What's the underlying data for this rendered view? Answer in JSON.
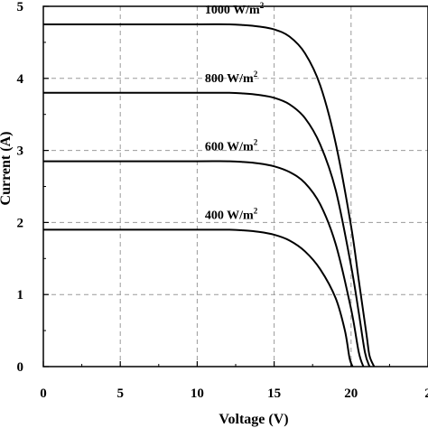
{
  "chart_data": {
    "type": "line",
    "xlabel": "Voltage (V)",
    "ylabel": "Current (A)",
    "xlim": [
      0,
      25
    ],
    "ylim": [
      0,
      5
    ],
    "x_ticks": [
      "0",
      "5",
      "10",
      "15",
      "20",
      "2"
    ],
    "y_ticks": [
      "0",
      "1",
      "2",
      "3",
      "4",
      "5"
    ],
    "grid": true,
    "annotations": [
      {
        "text": "1000 W/m",
        "sup": "2"
      },
      {
        "text": "800 W/m",
        "sup": "2"
      },
      {
        "text": "600 W/m",
        "sup": "2"
      },
      {
        "text": "400 W/m",
        "sup": "2"
      }
    ],
    "series": [
      {
        "points": [
          [
            0,
            4.75
          ],
          [
            5,
            4.75
          ],
          [
            10,
            4.75
          ],
          [
            12,
            4.75
          ],
          [
            13,
            4.74
          ],
          [
            14,
            4.72
          ],
          [
            15,
            4.68
          ],
          [
            16,
            4.58
          ],
          [
            17,
            4.35
          ],
          [
            18,
            3.9
          ],
          [
            19,
            3.1
          ],
          [
            20,
            1.95
          ],
          [
            20.5,
            1.2
          ],
          [
            21,
            0.45
          ],
          [
            21.2,
            0.15
          ],
          [
            21.5,
            0
          ]
        ]
      },
      {
        "points": [
          [
            0,
            3.8
          ],
          [
            5,
            3.8
          ],
          [
            10,
            3.8
          ],
          [
            12,
            3.8
          ],
          [
            13,
            3.79
          ],
          [
            14,
            3.77
          ],
          [
            15,
            3.73
          ],
          [
            16,
            3.64
          ],
          [
            17,
            3.45
          ],
          [
            18,
            3.08
          ],
          [
            19,
            2.45
          ],
          [
            20,
            1.4
          ],
          [
            20.5,
            0.75
          ],
          [
            20.9,
            0.2
          ],
          [
            21.2,
            0
          ]
        ]
      },
      {
        "points": [
          [
            0,
            2.85
          ],
          [
            5,
            2.85
          ],
          [
            10,
            2.85
          ],
          [
            12,
            2.85
          ],
          [
            13,
            2.84
          ],
          [
            14,
            2.82
          ],
          [
            15,
            2.78
          ],
          [
            16,
            2.7
          ],
          [
            17,
            2.55
          ],
          [
            18,
            2.25
          ],
          [
            19,
            1.7
          ],
          [
            20,
            0.8
          ],
          [
            20.5,
            0.2
          ],
          [
            20.8,
            0
          ]
        ]
      },
      {
        "points": [
          [
            0,
            1.9
          ],
          [
            5,
            1.9
          ],
          [
            10,
            1.9
          ],
          [
            12,
            1.9
          ],
          [
            13,
            1.89
          ],
          [
            14,
            1.87
          ],
          [
            15,
            1.83
          ],
          [
            16,
            1.75
          ],
          [
            17,
            1.6
          ],
          [
            18,
            1.35
          ],
          [
            19,
            0.95
          ],
          [
            19.6,
            0.5
          ],
          [
            19.9,
            0.12
          ],
          [
            20.1,
            0
          ]
        ]
      }
    ]
  }
}
